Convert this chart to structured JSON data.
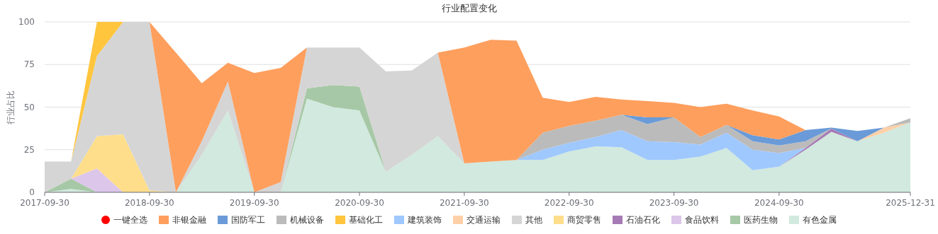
{
  "chart_data": {
    "type": "area",
    "title": "行业配置变化",
    "ylabel": "行业占比",
    "stacked": true,
    "grid": "y",
    "legend": "bottom",
    "annotations": [
      "一键全选"
    ],
    "x": [
      "2017-09-30",
      "2017-12-31",
      "2018-03-31",
      "2018-06-30",
      "2018-09-30",
      "2018-12-31",
      "2019-03-31",
      "2019-06-30",
      "2019-09-30",
      "2019-12-31",
      "2020-03-31",
      "2020-06-30",
      "2020-09-30",
      "2020-12-31",
      "2021-03-31",
      "2021-06-30",
      "2021-09-30",
      "2021-12-31",
      "2022-03-31",
      "2022-06-30",
      "2022-09-30",
      "2022-12-31",
      "2023-03-31",
      "2023-06-30",
      "2023-09-30",
      "2023-12-31",
      "2024-03-31",
      "2024-06-30",
      "2024-09-30",
      "2024-12-31",
      "2025-03-31",
      "2025-06-30",
      "2025-09-30",
      "2025-12-31"
    ],
    "xlim": [
      "2017-09-30",
      "2025-12-31"
    ],
    "xticks": [
      "2017-09-30",
      "2018-09-30",
      "2019-09-30",
      "2020-09-30",
      "2021-09-30",
      "2022-09-30",
      "2023-09-30",
      "2024-09-30",
      "2025-12-31"
    ],
    "ylim": [
      0,
      100
    ],
    "yticks": [
      0,
      25,
      50,
      75,
      100
    ],
    "series": [
      {
        "name": "有色金属",
        "color": "#d1e9de",
        "values": [
          0,
          2,
          0,
          null,
          null,
          0,
          22,
          48,
          0,
          0,
          55,
          50,
          48,
          12,
          22,
          33,
          17,
          18,
          19,
          19,
          24,
          27,
          26.5,
          19,
          19,
          21,
          26,
          13,
          15,
          25,
          35.5,
          30,
          35,
          41
        ]
      },
      {
        "name": "医药生物",
        "color": "#a6c8a6",
        "values": [
          0,
          6,
          0,
          null,
          null,
          null,
          null,
          null,
          null,
          0,
          6,
          13,
          14,
          0,
          null,
          null,
          null,
          null,
          null,
          null,
          null,
          null,
          null,
          null,
          null,
          null,
          null,
          null,
          null,
          null,
          null,
          null,
          null,
          null
        ]
      },
      {
        "name": "食品饮料",
        "color": "#dcc6ea",
        "values": [
          null,
          0,
          14,
          0,
          null,
          null,
          null,
          null,
          null,
          null,
          null,
          null,
          null,
          null,
          null,
          null,
          null,
          null,
          null,
          null,
          null,
          null,
          null,
          null,
          null,
          null,
          null,
          null,
          null,
          null,
          null,
          null,
          null,
          null
        ]
      },
      {
        "name": "石油石化",
        "color": "#a67bb5",
        "values": [
          null,
          null,
          null,
          null,
          null,
          null,
          null,
          null,
          null,
          null,
          null,
          null,
          null,
          null,
          null,
          null,
          null,
          null,
          null,
          null,
          null,
          null,
          null,
          null,
          null,
          null,
          null,
          null,
          0,
          1,
          2,
          0,
          null,
          null
        ]
      },
      {
        "name": "商贸零售",
        "color": "#fede8a",
        "values": [
          null,
          0,
          19,
          34,
          1,
          0,
          null,
          null,
          null,
          null,
          null,
          null,
          null,
          null,
          null,
          null,
          null,
          null,
          null,
          null,
          null,
          null,
          null,
          null,
          null,
          null,
          null,
          null,
          null,
          null,
          null,
          null,
          null,
          null
        ]
      },
      {
        "name": "其他",
        "color": "#d5d5d5",
        "values": [
          18,
          10,
          47,
          66,
          99,
          0,
          8,
          17,
          0,
          6,
          24,
          22,
          23,
          59,
          49.5,
          49,
          0,
          null,
          null,
          null,
          null,
          null,
          null,
          null,
          null,
          null,
          null,
          null,
          null,
          null,
          null,
          null,
          null,
          null
        ]
      },
      {
        "name": "交通运输",
        "color": "#ffd0a8",
        "values": [
          null,
          null,
          null,
          null,
          null,
          null,
          null,
          null,
          null,
          null,
          null,
          null,
          null,
          null,
          null,
          null,
          null,
          null,
          null,
          null,
          null,
          null,
          null,
          null,
          null,
          null,
          null,
          null,
          null,
          null,
          null,
          0,
          3,
          0
        ]
      },
      {
        "name": "建筑装饰",
        "color": "#9fc8ff",
        "values": [
          null,
          null,
          null,
          null,
          null,
          null,
          null,
          null,
          null,
          null,
          null,
          null,
          null,
          null,
          null,
          null,
          null,
          null,
          0,
          6,
          5,
          5.5,
          10,
          11,
          10.5,
          7,
          9,
          12,
          8,
          0,
          null,
          null,
          null,
          null
        ]
      },
      {
        "name": "基础化工",
        "color": "#ffc53d",
        "values": [
          null,
          0,
          20,
          0,
          null,
          null,
          null,
          null,
          null,
          null,
          null,
          null,
          null,
          null,
          null,
          null,
          null,
          null,
          null,
          null,
          null,
          null,
          null,
          null,
          null,
          null,
          null,
          null,
          null,
          null,
          null,
          null,
          null,
          null
        ]
      },
      {
        "name": "机械设备",
        "color": "#bbbbbb",
        "values": [
          null,
          null,
          null,
          null,
          null,
          null,
          null,
          null,
          null,
          null,
          null,
          null,
          null,
          null,
          null,
          null,
          null,
          null,
          0,
          10,
          10,
          9.5,
          9,
          10,
          14.5,
          4.5,
          4.5,
          5,
          4.5,
          4,
          0,
          null,
          0,
          2.5
        ]
      },
      {
        "name": "国防军工",
        "color": "#6a9bd8",
        "values": [
          null,
          null,
          null,
          null,
          null,
          null,
          null,
          null,
          null,
          null,
          null,
          null,
          null,
          null,
          null,
          null,
          null,
          null,
          null,
          null,
          null,
          null,
          0,
          4,
          0,
          null,
          0,
          3.5,
          3.5,
          6.5,
          0.5,
          6,
          0,
          null
        ]
      },
      {
        "name": "非银金融",
        "color": "#fe9f5e",
        "values": [
          null,
          null,
          null,
          null,
          0,
          82,
          34,
          11,
          70,
          67,
          0,
          null,
          null,
          null,
          null,
          0,
          68,
          71.5,
          70,
          20.5,
          14,
          14,
          9,
          9.5,
          8.5,
          17.5,
          12.5,
          14.5,
          13.5,
          0,
          null,
          null,
          null,
          null
        ]
      }
    ]
  }
}
